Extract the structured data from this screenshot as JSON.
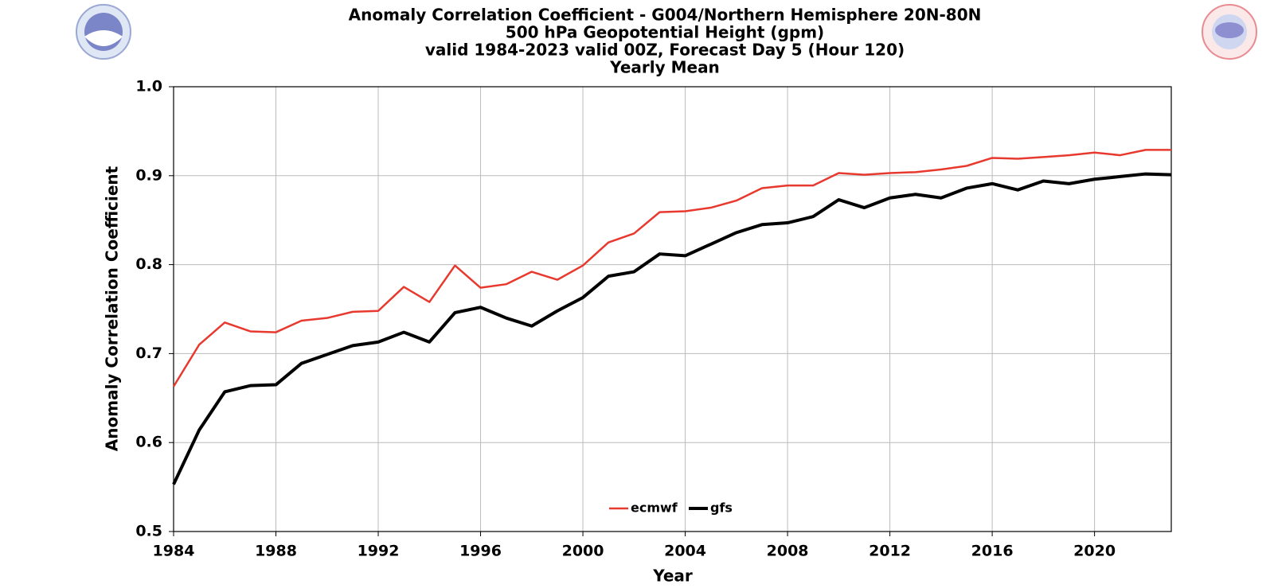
{
  "chart_data": {
    "type": "line",
    "title": [
      "Anomaly Correlation Coefficient - G004/Northern Hemisphere 20N-80N",
      "500 hPa Geopotential Height (gpm)",
      "valid 1984-2023 valid 00Z, Forecast Day 5 (Hour 120)",
      "Yearly Mean"
    ],
    "x_label": "Year",
    "y_label": "Anomaly Correlation Coefficient",
    "x": [
      1984,
      1985,
      1986,
      1987,
      1988,
      1989,
      1990,
      1991,
      1992,
      1993,
      1994,
      1995,
      1996,
      1997,
      1998,
      1999,
      2000,
      2001,
      2002,
      2003,
      2004,
      2005,
      2006,
      2007,
      2008,
      2009,
      2010,
      2011,
      2012,
      2013,
      2014,
      2015,
      2016,
      2017,
      2018,
      2019,
      2020,
      2021,
      2022,
      2023
    ],
    "series": [
      {
        "name": "ecmwf",
        "color": "#e8392f",
        "values": [
          0.663,
          0.71,
          0.735,
          0.725,
          0.724,
          0.737,
          0.74,
          0.747,
          0.748,
          0.775,
          0.758,
          0.799,
          0.774,
          0.778,
          0.792,
          0.783,
          0.799,
          0.825,
          0.835,
          0.859,
          0.86,
          0.864,
          0.872,
          0.886,
          0.889,
          0.889,
          0.903,
          0.901,
          0.903,
          0.904,
          0.907,
          0.911,
          0.92,
          0.919,
          0.921,
          0.923,
          0.926,
          0.923,
          0.929,
          0.929
        ]
      },
      {
        "name": "gfs",
        "color": "#000000",
        "values": [
          0.553,
          0.614,
          0.657,
          0.664,
          0.665,
          0.689,
          0.699,
          0.709,
          0.713,
          0.724,
          0.713,
          0.746,
          0.752,
          0.74,
          0.731,
          0.748,
          0.763,
          0.787,
          0.792,
          0.812,
          0.81,
          0.823,
          0.836,
          0.845,
          0.847,
          0.854,
          0.873,
          0.864,
          0.875,
          0.879,
          0.875,
          0.886,
          0.891,
          0.884,
          0.894,
          0.891,
          0.896,
          0.899,
          0.902,
          0.901
        ]
      }
    ],
    "xlim": [
      1984,
      2023
    ],
    "xticks": [
      1984,
      1988,
      1992,
      1996,
      2000,
      2004,
      2008,
      2012,
      2016,
      2020
    ],
    "ylim": [
      0.5,
      1.0
    ],
    "yticks": [
      0.5,
      0.6,
      0.7,
      0.8,
      0.9,
      {
        "value": 1,
        "label": "1.0"
      }
    ],
    "grid": true,
    "legend": "bottom"
  }
}
